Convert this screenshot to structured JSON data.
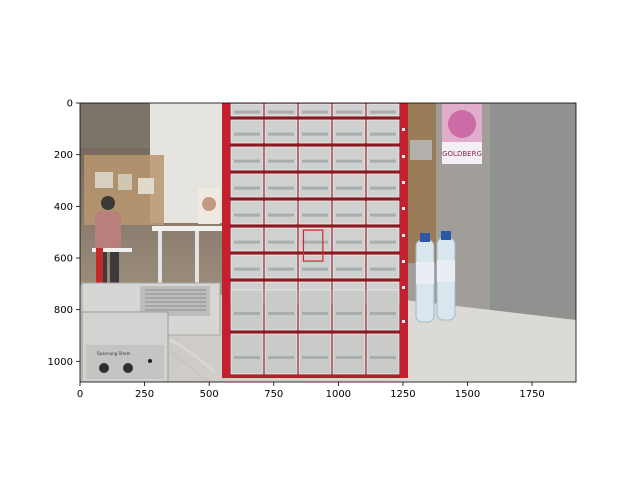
{
  "chart_data": {
    "type": "image",
    "title": "",
    "xlabel": "",
    "ylabel": "",
    "xlim": [
      0,
      1920
    ],
    "ylim": [
      1080,
      0
    ],
    "x_ticks": [
      0,
      250,
      500,
      750,
      1000,
      1250,
      1500,
      1750
    ],
    "y_ticks": [
      0,
      200,
      400,
      600,
      800,
      1000
    ],
    "grid": false,
    "image_content": "Photo of a red metal rack of clear plastic small-parts drawers in a workshop; water bottles on the right, bench power supply at lower left, person in background",
    "annotation_box": {
      "x": [
        865,
        940
      ],
      "y": [
        492,
        612
      ],
      "color": "#d62728"
    },
    "scene_text": {
      "poster": "GOLDBERG",
      "device_label": "Spannung  Strom"
    }
  },
  "colors": {
    "rack_red": "#b3202c",
    "box_red": "#d62728",
    "floor": "#d9d6d2",
    "wall_right": "#8f928e"
  }
}
